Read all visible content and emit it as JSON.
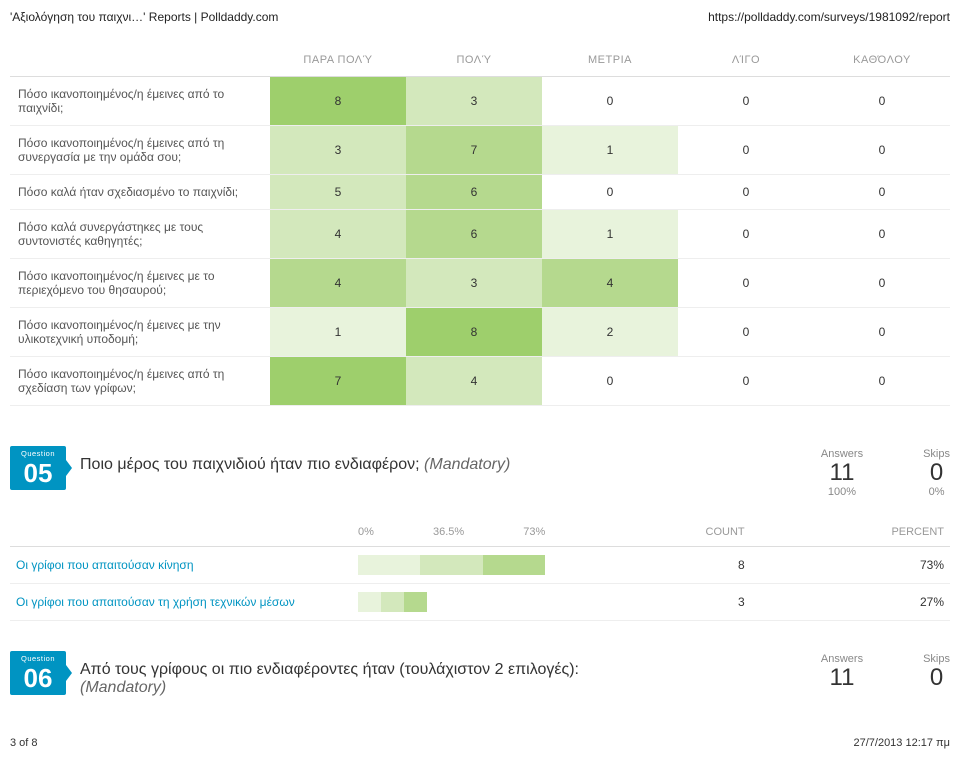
{
  "top": {
    "left": "'Αξιολόγηση του παιχνι…' Reports | Polldaddy.com",
    "right": "https://polldaddy.com/surveys/1981092/report"
  },
  "matrix": {
    "columns": [
      "ΠΑΡΑ ΠΟΛΎ",
      "ΠΟΛΎ",
      "ΜΕΤΡΙΑ",
      "ΛΊΓΟ",
      "ΚΑΘΌΛΟΥ"
    ],
    "rows": [
      {
        "label": "Πόσο ικανοποιημένος/η έμεινες από το παιχνίδι;",
        "vals": [
          8,
          3,
          0,
          0,
          0
        ],
        "intensity": [
          4,
          2,
          0,
          0,
          0
        ]
      },
      {
        "label": "Πόσο ικανοποιημένος/η έμεινες από τη συνεργασία με την ομάδα σου;",
        "vals": [
          3,
          7,
          1,
          0,
          0
        ],
        "intensity": [
          2,
          3,
          1,
          0,
          0
        ]
      },
      {
        "label": "Πόσο καλά ήταν σχεδιασμένο το παιχνίδι;",
        "vals": [
          5,
          6,
          0,
          0,
          0
        ],
        "intensity": [
          2,
          3,
          0,
          0,
          0
        ]
      },
      {
        "label": "Πόσο καλά συνεργάστηκες με τους συντονιστές καθηγητές;",
        "vals": [
          4,
          6,
          1,
          0,
          0
        ],
        "intensity": [
          2,
          3,
          1,
          0,
          0
        ]
      },
      {
        "label": "Πόσο ικανοποιημένος/η έμεινες με το περιεχόμενο του θησαυρού;",
        "vals": [
          4,
          3,
          4,
          0,
          0
        ],
        "intensity": [
          3,
          2,
          3,
          0,
          0
        ]
      },
      {
        "label": "Πόσο ικανοποιημένος/η έμεινες με την υλικοτεχνική υποδομή;",
        "vals": [
          1,
          8,
          2,
          0,
          0
        ],
        "intensity": [
          1,
          4,
          1,
          0,
          0
        ]
      },
      {
        "label": "Πόσο ικανοποιημένος/η έμεινες από τη σχεδίαση των γρίφων;",
        "vals": [
          7,
          4,
          0,
          0,
          0
        ],
        "intensity": [
          4,
          2,
          0,
          0,
          0
        ]
      }
    ]
  },
  "q05": {
    "badge_small": "Question",
    "badge_num": "05",
    "text": "Ποιο μέρος του παιχνιδιού ήταν πιο ενδιαφέρον; ",
    "mandatory": "(Mandatory)",
    "answers_label": "Answers",
    "answers_value": "11",
    "answers_pct": "100%",
    "skips_label": "Skips",
    "skips_value": "0",
    "skips_pct": "0%",
    "axis": [
      "0%",
      "36.5%",
      "73%"
    ],
    "count_header": "COUNT",
    "percent_header": "PERCENT",
    "bar_colors": {
      "light": "#e8f3dc",
      "mid": "#d3e8bc",
      "dark": "#b5d98e"
    },
    "rows": [
      {
        "label": "Οι γρίφοι που απαιτούσαν κίνηση",
        "count": "8",
        "pct": "73%",
        "fill": 100
      },
      {
        "label": "Οι γρίφοι που απαιτούσαν τη χρήση τεχνικών μέσων",
        "count": "3",
        "pct": "27%",
        "fill": 37
      }
    ]
  },
  "q06": {
    "badge_small": "Question",
    "badge_num": "06",
    "text_a": "Από τους γρίφους οι πιο ενδιαφέροντες ήταν (τουλάχιστον 2 επιλογές): ",
    "mandatory": "(Mandatory)",
    "answers_label": "Answers",
    "answers_value": "11",
    "skips_label": "Skips",
    "skips_value": "0"
  },
  "footer": {
    "left": "3 of 8",
    "right": "27/7/2013 12:17 πμ"
  }
}
